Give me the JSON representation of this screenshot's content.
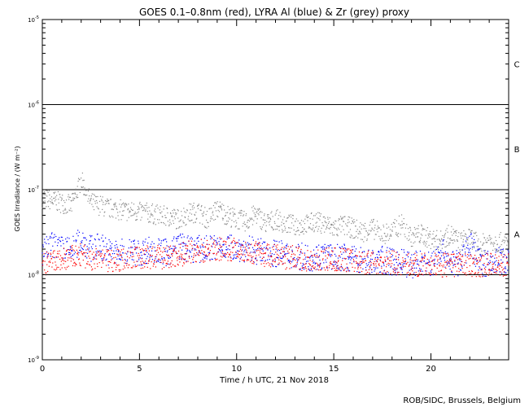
{
  "title": "GOES 0.1–0.8nm (red), LYRA Al (blue) & Zr (grey) proxy",
  "credit": "ROB/SIDC, Brussels, Belgium",
  "chart_data": {
    "type": "scatter",
    "title": "GOES 0.1–0.8nm (red), LYRA Al (blue) & Zr (grey) proxy",
    "xlabel": "Time / h UTC, 21 Nov 2018",
    "ylabel": "GOES Irradiance / (W m⁻²)",
    "xlim": [
      0,
      24
    ],
    "ylim": [
      1e-09,
      1e-05
    ],
    "y_scale": "log",
    "x_ticks": [
      0,
      5,
      10,
      15,
      20
    ],
    "y_tick_exponents": [
      -9,
      -8,
      -7,
      -6,
      -5
    ],
    "flare_class_lines": [
      1e-08,
      1e-07,
      1e-06
    ],
    "flare_class_labels": [
      {
        "label": "A",
        "y": 3e-08
      },
      {
        "label": "B",
        "y": 3e-07
      },
      {
        "label": "C",
        "y": 3e-06
      }
    ],
    "series": [
      {
        "name": "GOES 0.1–0.8nm",
        "color": "#ff0000",
        "points": [
          [
            0.0,
            1.3e-08
          ],
          [
            0.5,
            1.4e-08
          ],
          [
            1.0,
            1.5e-08
          ],
          [
            1.5,
            1.6e-08
          ],
          [
            2.0,
            1.7e-08
          ],
          [
            2.5,
            1.5e-08
          ],
          [
            3.0,
            1.5e-08
          ],
          [
            3.5,
            1.5e-08
          ],
          [
            4.0,
            1.5e-08
          ],
          [
            4.5,
            1.6e-08
          ],
          [
            5.0,
            1.6e-08
          ],
          [
            5.5,
            1.6e-08
          ],
          [
            6.0,
            1.6e-08
          ],
          [
            6.5,
            1.6e-08
          ],
          [
            7.0,
            1.7e-08
          ],
          [
            7.5,
            1.8e-08
          ],
          [
            8.0,
            1.9e-08
          ],
          [
            8.5,
            1.9e-08
          ],
          [
            9.0,
            2e-08
          ],
          [
            9.5,
            2e-08
          ],
          [
            10.0,
            2e-08
          ],
          [
            10.5,
            1.9e-08
          ],
          [
            11.0,
            1.8e-08
          ],
          [
            11.5,
            1.7e-08
          ],
          [
            12.0,
            1.7e-08
          ],
          [
            12.5,
            1.6e-08
          ],
          [
            13.0,
            1.6e-08
          ],
          [
            13.5,
            1.5e-08
          ],
          [
            14.0,
            1.5e-08
          ],
          [
            14.5,
            1.5e-08
          ],
          [
            15.0,
            1.5e-08
          ],
          [
            15.5,
            1.5e-08
          ],
          [
            16.0,
            1.5e-08
          ],
          [
            16.5,
            1.4e-08
          ],
          [
            17.0,
            1.4e-08
          ],
          [
            17.5,
            1.4e-08
          ],
          [
            18.0,
            1.4e-08
          ],
          [
            18.5,
            1.3e-08
          ],
          [
            19.0,
            1.3e-08
          ],
          [
            19.5,
            1.3e-08
          ],
          [
            20.0,
            1.3e-08
          ],
          [
            20.5,
            1.3e-08
          ],
          [
            21.0,
            1.3e-08
          ],
          [
            21.5,
            1.3e-08
          ],
          [
            22.0,
            1.3e-08
          ],
          [
            22.5,
            1.3e-08
          ],
          [
            23.0,
            1.3e-08
          ],
          [
            23.5,
            1.3e-08
          ],
          [
            24.0,
            1.3e-08
          ]
        ]
      },
      {
        "name": "LYRA Al",
        "color": "#0000ff",
        "points": [
          [
            0.0,
            1.8e-08
          ],
          [
            0.5,
            2.2e-08
          ],
          [
            1.0,
            2e-08
          ],
          [
            1.5,
            1.9e-08
          ],
          [
            2.0,
            2.6e-08
          ],
          [
            2.5,
            2e-08
          ],
          [
            3.0,
            2.2e-08
          ],
          [
            3.5,
            1.8e-08
          ],
          [
            4.0,
            1.8e-08
          ],
          [
            4.5,
            1.9e-08
          ],
          [
            5.0,
            1.8e-08
          ],
          [
            5.5,
            2e-08
          ],
          [
            6.0,
            1.9e-08
          ],
          [
            6.5,
            1.8e-08
          ],
          [
            7.0,
            2.2e-08
          ],
          [
            7.5,
            2e-08
          ],
          [
            8.0,
            2e-08
          ],
          [
            8.5,
            2e-08
          ],
          [
            9.0,
            2.1e-08
          ],
          [
            9.5,
            2.2e-08
          ],
          [
            10.0,
            2.1e-08
          ],
          [
            10.5,
            2e-08
          ],
          [
            11.0,
            1.9e-08
          ],
          [
            11.5,
            1.8e-08
          ],
          [
            12.0,
            1.8e-08
          ],
          [
            12.5,
            1.7e-08
          ],
          [
            13.0,
            1.7e-08
          ],
          [
            13.5,
            1.6e-08
          ],
          [
            14.0,
            1.6e-08
          ],
          [
            14.5,
            1.7e-08
          ],
          [
            15.0,
            1.6e-08
          ],
          [
            15.5,
            1.6e-08
          ],
          [
            16.0,
            1.5e-08
          ],
          [
            16.5,
            1.5e-08
          ],
          [
            17.0,
            1.4e-08
          ],
          [
            17.5,
            1.5e-08
          ],
          [
            18.0,
            1.4e-08
          ],
          [
            18.5,
            1.4e-08
          ],
          [
            19.0,
            1.3e-08
          ],
          [
            19.5,
            1.4e-08
          ],
          [
            20.0,
            1.3e-08
          ],
          [
            20.5,
            2e-08
          ],
          [
            21.0,
            1.4e-08
          ],
          [
            21.5,
            1.3e-08
          ],
          [
            22.0,
            2.5e-08
          ],
          [
            22.5,
            1.4e-08
          ],
          [
            23.0,
            1.3e-08
          ],
          [
            23.5,
            1.5e-08
          ],
          [
            24.0,
            1.4e-08
          ]
        ]
      },
      {
        "name": "LYRA Zr",
        "color": "#8a8a8a",
        "points": [
          [
            0.0,
            8e-08
          ],
          [
            0.5,
            7.5e-08
          ],
          [
            1.0,
            7e-08
          ],
          [
            1.5,
            6.5e-08
          ],
          [
            2.0,
            1.3e-07
          ],
          [
            2.5,
            7e-08
          ],
          [
            3.0,
            6.5e-08
          ],
          [
            3.5,
            6e-08
          ],
          [
            4.0,
            5.8e-08
          ],
          [
            4.5,
            5.5e-08
          ],
          [
            5.0,
            5.5e-08
          ],
          [
            5.5,
            5.3e-08
          ],
          [
            6.0,
            5e-08
          ],
          [
            6.5,
            4.8e-08
          ],
          [
            7.0,
            4.5e-08
          ],
          [
            7.5,
            5.2e-08
          ],
          [
            8.0,
            5.5e-08
          ],
          [
            8.5,
            4.5e-08
          ],
          [
            9.0,
            6e-08
          ],
          [
            9.5,
            5e-08
          ],
          [
            10.0,
            4.5e-08
          ],
          [
            10.5,
            4.2e-08
          ],
          [
            11.0,
            5.2e-08
          ],
          [
            11.5,
            4e-08
          ],
          [
            12.0,
            4.5e-08
          ],
          [
            12.5,
            4e-08
          ],
          [
            13.0,
            3.8e-08
          ],
          [
            13.5,
            3.8e-08
          ],
          [
            14.0,
            4.2e-08
          ],
          [
            14.5,
            4e-08
          ],
          [
            15.0,
            3.5e-08
          ],
          [
            15.5,
            3.8e-08
          ],
          [
            16.0,
            3.5e-08
          ],
          [
            16.5,
            3.2e-08
          ],
          [
            17.0,
            3.5e-08
          ],
          [
            17.5,
            3e-08
          ],
          [
            18.0,
            3.2e-08
          ],
          [
            18.5,
            4e-08
          ],
          [
            19.0,
            2.8e-08
          ],
          [
            19.5,
            3e-08
          ],
          [
            20.0,
            2.6e-08
          ],
          [
            20.5,
            2.5e-08
          ],
          [
            21.0,
            3e-08
          ],
          [
            21.5,
            2.4e-08
          ],
          [
            22.0,
            2.8e-08
          ],
          [
            22.5,
            2.2e-08
          ],
          [
            23.0,
            2.5e-08
          ],
          [
            23.5,
            2.4e-08
          ],
          [
            24.0,
            2.3e-08
          ]
        ]
      }
    ]
  }
}
